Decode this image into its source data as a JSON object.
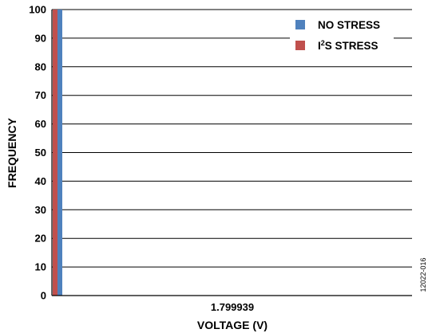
{
  "chart_data": {
    "type": "bar",
    "xlabel": "VOLTAGE (V)",
    "ylabel": "FREQUENCY",
    "categories": [
      "1.799939"
    ],
    "ylim": [
      0,
      100
    ],
    "yticks": [
      0,
      10,
      20,
      30,
      40,
      50,
      60,
      70,
      80,
      90,
      100
    ],
    "grid": true,
    "legend_position": "top-right",
    "series": [
      {
        "name": "NO STRESS",
        "color": "#4f81bd",
        "values": [
          100
        ]
      },
      {
        "name": "I²S STRESS",
        "color": "#c0504d",
        "values": [
          100
        ]
      }
    ]
  },
  "legend": {
    "no_stress": "NO STRESS",
    "i2s_prefix": "I",
    "i2s_sup": "2",
    "i2s_suffix": "S STRESS"
  },
  "figure_id": "12022-016"
}
